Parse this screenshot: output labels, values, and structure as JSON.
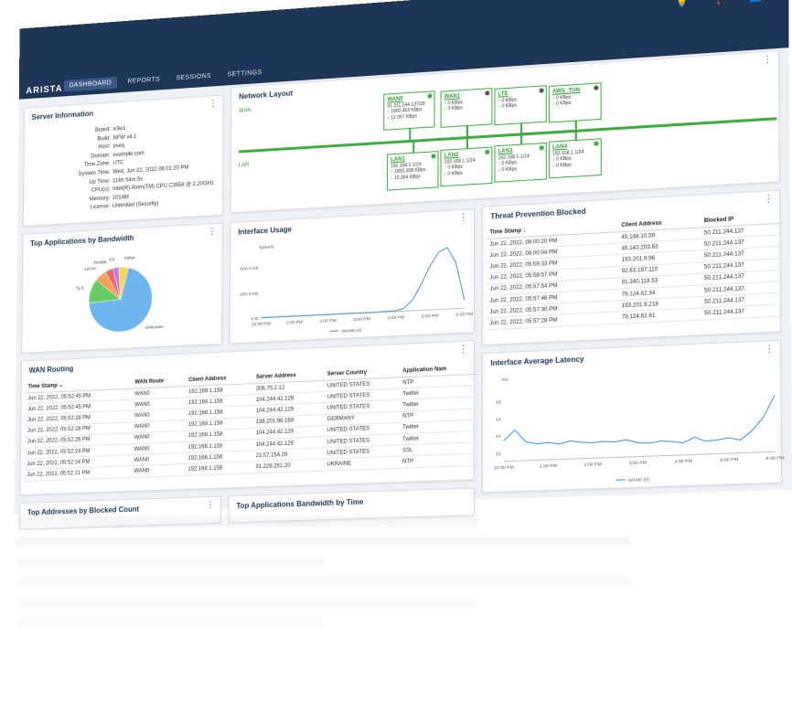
{
  "header": {
    "brand": "ARISTA",
    "tabs": [
      {
        "label": "DASHBOARD",
        "active": true
      },
      {
        "label": "REPORTS",
        "active": false
      },
      {
        "label": "SESSIONS",
        "active": false
      },
      {
        "label": "SETTINGS",
        "active": false
      }
    ],
    "icons": [
      "lightbulb-icon",
      "help-icon",
      "account-icon"
    ],
    "chevron": "⌄",
    "colors": {
      "topbar": "#1d3557",
      "accent_green": "#38b03a",
      "chart_blue": "#3d8fe0"
    }
  },
  "server_info": {
    "title": "Server Information",
    "rows": [
      {
        "k": "Board:",
        "v": "e3w1"
      },
      {
        "k": "Build:",
        "v": "NFW v4.1"
      },
      {
        "k": "Host:",
        "v": "pseq"
      },
      {
        "k": "Domain:",
        "v": "example.com"
      },
      {
        "k": "Time Zone:",
        "v": "UTC"
      },
      {
        "k": "System Time:",
        "v": "Wed, Jun 22, 2022 06:01:20 PM"
      },
      {
        "k": "Up Time:",
        "v": "116h 54m 5s"
      },
      {
        "k": "CPU(s):",
        "v": "Intel(R) Atom(TM) CPU C3558 @ 2.20GHz"
      },
      {
        "k": "Memory:",
        "v": "2014M"
      },
      {
        "k": "License:",
        "v": "Unlimited (Security)"
      }
    ]
  },
  "network": {
    "title": "Network Layout",
    "wan_label": "WAN",
    "lan_label": "LAN",
    "wan_nodes": [
      {
        "name": "WAN0",
        "l1": "91.211.244.137/28",
        "l2": "↑ 1900.463 KBps",
        "l3": "↓ 12.097 KBps",
        "status": "#38b03a"
      },
      {
        "name": "WAN1",
        "l1": "",
        "l2": "↑ 0 KBps",
        "l3": "↓ 0 KBps",
        "status": "#555555"
      },
      {
        "name": "LTE",
        "l1": "",
        "l2": "↑ 0 KBps",
        "l3": "↓ 0 KBps",
        "status": "#555555"
      },
      {
        "name": "AWS_TUN",
        "l1": "",
        "l2": "↑ 0 KBps",
        "l3": "↓ 0 KBps",
        "status": "#555555"
      }
    ],
    "lan_nodes": [
      {
        "name": "LAN1",
        "l1": "192.168.1.1/24",
        "l2": "↑ 1900.308 KBps",
        "l3": "↓ 10.264 KBps",
        "status": "#38b03a"
      },
      {
        "name": "LAN2",
        "l1": "192.168.1.1/24",
        "l2": "↑ 0 KBps",
        "l3": "↓ 0 KBps",
        "status": "#38b03a"
      },
      {
        "name": "LAN3",
        "l1": "192.168.1.1/24",
        "l2": "↑ 0 KBps",
        "l3": "↓ 0 KBps",
        "status": "#38b03a"
      },
      {
        "name": "LAN4",
        "l1": "192.168.1.1/24",
        "l2": "↑ 0 KBps",
        "l3": "↓ 0 KBps",
        "status": "#38b03a"
      }
    ]
  },
  "top_apps": {
    "title": "Top Applications by Bandwidth",
    "slices": [
      {
        "label": "Unknown",
        "value": 70,
        "color": "#6eb6f0"
      },
      {
        "label": "TLS",
        "value": 12,
        "color": "#66cc66"
      },
      {
        "label": "HTTP",
        "value": 6,
        "color": "#f0a35c"
      },
      {
        "label": "Reddit",
        "value": 4,
        "color": "#e86b6b"
      },
      {
        "label": "SS",
        "value": 3,
        "color": "#b77ee0"
      },
      {
        "label": "Other",
        "value": 5,
        "color": "#f3d55c"
      }
    ]
  },
  "iface_usage": {
    "title": "Interface Usage",
    "y_unit": "bytes/s",
    "legend": "WAN0 (0)"
  },
  "threat": {
    "title": "Threat Prevention Blocked",
    "columns": [
      "Time Stamp ↓",
      "Client Address",
      "Blocked IP"
    ],
    "rows": [
      [
        "Jun 22, 2022, 06:00:20 PM",
        "45.148.10.59",
        "50.211.244.137"
      ],
      [
        "Jun 22, 2022, 06:00:04 PM",
        "45.143.203.63",
        "50.211.244.137"
      ],
      [
        "Jun 22, 2022, 05:59:33 PM",
        "193.201.9.96",
        "50.211.244.137"
      ],
      [
        "Jun 22, 2022, 05:58:57 PM",
        "92.63.197.110",
        "50.211.244.137"
      ],
      [
        "Jun 22, 2022, 05:57:54 PM",
        "91.240.118.53",
        "50.211.244.137"
      ],
      [
        "Jun 22, 2022, 05:57:46 PM",
        "79.124.62.34",
        "50.211.244.137"
      ],
      [
        "Jun 22, 2022, 05:57:30 PM",
        "193.201.9.218",
        "50.211.244.137"
      ],
      [
        "Jun 22, 2022, 05:57:28 PM",
        "79.124.62.61",
        "50.211.244.137"
      ]
    ]
  },
  "wan_routing": {
    "title": "WAN Routing",
    "columns": [
      "Time Stamp ⌄",
      "WAN Route",
      "Client Address",
      "Server Address",
      "Server Country",
      "Application Nam"
    ],
    "rows": [
      [
        "Jun 22, 2022, 05:52:45 PM",
        "WAN0",
        "192.168.1.158",
        "206.75.2.12",
        "UNITED STATES",
        "NTP"
      ],
      [
        "Jun 22, 2022, 05:52:45 PM",
        "WAN0",
        "192.168.1.158",
        "104.244.42.129",
        "UNITED STATES",
        "Twitter"
      ],
      [
        "Jun 22, 2022, 05:52:28 PM",
        "WAN0",
        "192.168.1.158",
        "104.244.42.129",
        "UNITED STATES",
        "Twitter"
      ],
      [
        "Jun 22, 2022, 05:52:28 PM",
        "WAN0",
        "192.168.1.158",
        "138.201.96.169",
        "GERMANY",
        "NTP"
      ],
      [
        "Jun 22, 2022, 05:52:26 PM",
        "WAN0",
        "192.168.1.158",
        "104.244.42.129",
        "UNITED STATES",
        "Twitter"
      ],
      [
        "Jun 22, 2022, 05:52:24 PM",
        "WAN0",
        "192.168.1.158",
        "104.244.42.129",
        "UNITED STATES",
        "Twitter"
      ],
      [
        "Jun 22, 2022, 05:52:24 PM",
        "WAN0",
        "192.168.1.158",
        "23.57.154.29",
        "UNITED STATES",
        "SSL"
      ],
      [
        "Jun 22, 2022, 05:52:21 PM",
        "WAN0",
        "192.168.1.158",
        "31.228.251.20",
        "UKRAINE",
        "NTP"
      ]
    ]
  },
  "latency": {
    "title": "Interface Average Latency",
    "y_unit": "ms",
    "legend": "WAN0 (0)"
  },
  "bottom": {
    "left_title": "Top Addresses by Blocked Count",
    "mid_title": "Top Applications Bandwidth by Time"
  },
  "chart_data": [
    {
      "type": "pie",
      "title": "Top Applications by Bandwidth",
      "categories": [
        "Unknown",
        "TLS",
        "HTTP",
        "Reddit",
        "SS",
        "Other"
      ],
      "values": [
        70,
        12,
        6,
        4,
        3,
        5
      ]
    },
    {
      "type": "area",
      "title": "Interface Usage",
      "ylabel": "bytes/s",
      "x_ticks": [
        "12:00 PM",
        "1:00 PM",
        "2:00 PM",
        "3:00 PM",
        "4:00 PM",
        "5:00 PM",
        "6:00 PM"
      ],
      "y_ticks": [
        "0 B",
        "250.0 KB",
        "500.0 KB"
      ],
      "ylim": [
        0,
        650
      ],
      "x": [
        12,
        12.5,
        13,
        13.5,
        14,
        14.5,
        15,
        15.5,
        16,
        16.25,
        16.5,
        16.75,
        17,
        17.25,
        17.5,
        17.75,
        18
      ],
      "series": [
        {
          "name": "WAN0 (0)",
          "values": [
            2,
            2,
            2,
            2,
            2,
            2,
            2,
            3,
            8,
            30,
            110,
            260,
            430,
            560,
            600,
            450,
            80
          ]
        }
      ]
    },
    {
      "type": "line",
      "title": "Interface Average Latency",
      "ylabel": "ms",
      "x_ticks": [
        "12:00 PM",
        "1:00 PM",
        "2:00 PM",
        "3:00 PM",
        "4:00 PM",
        "5:00 PM",
        "6:00 PM"
      ],
      "y_ticks": [
        "12",
        "14",
        "16",
        "18"
      ],
      "ylim": [
        11,
        20
      ],
      "x": [
        12,
        12.25,
        12.5,
        12.75,
        13,
        13.25,
        13.5,
        13.75,
        14,
        14.25,
        14.5,
        14.75,
        15,
        15.25,
        15.5,
        15.75,
        16,
        16.25,
        16.5,
        16.75,
        17,
        17.25,
        17.5,
        17.75,
        18
      ],
      "series": [
        {
          "name": "WAN0 (0)",
          "values": [
            13.4,
            14.6,
            13.2,
            12.9,
            13.0,
            12.8,
            13.1,
            12.9,
            12.8,
            12.9,
            12.8,
            13.0,
            12.6,
            12.5,
            12.7,
            12.6,
            12.4,
            13.0,
            12.5,
            12.6,
            12.8,
            12.5,
            13.5,
            15.0,
            17.5
          ]
        }
      ]
    }
  ]
}
